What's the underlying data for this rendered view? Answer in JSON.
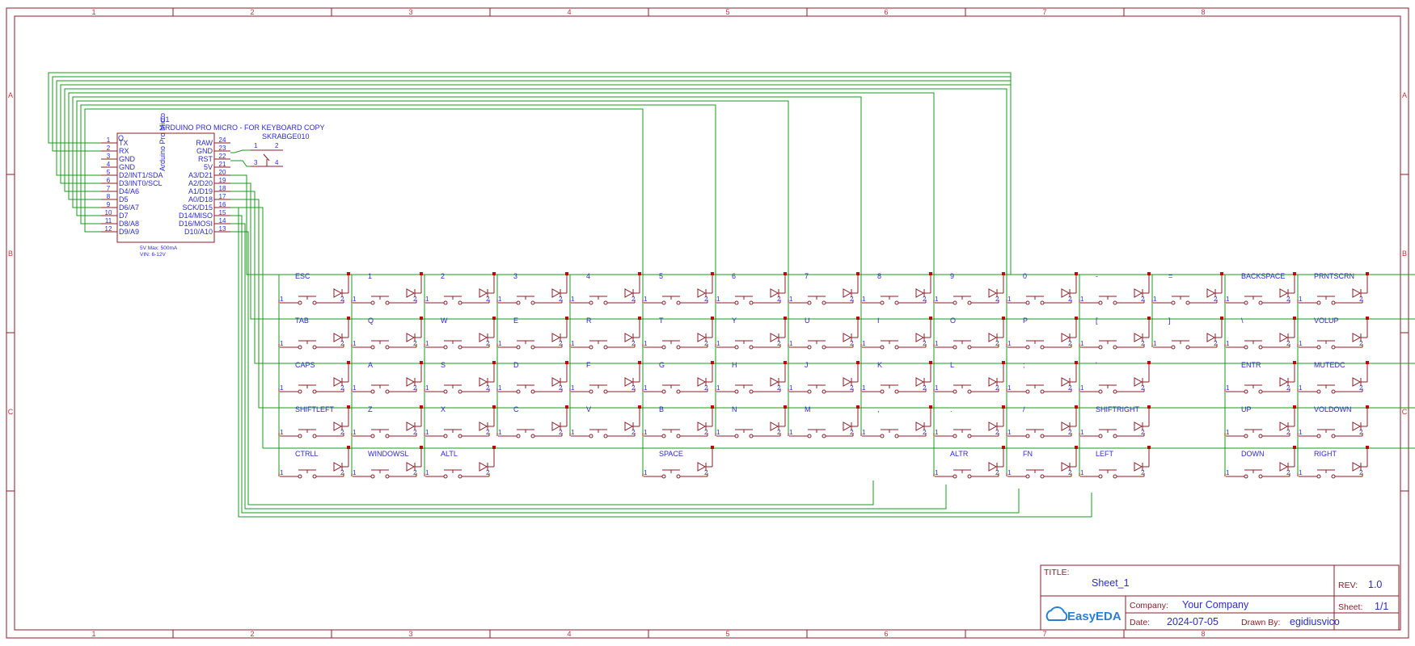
{
  "frame": {
    "columns": [
      "1",
      "2",
      "3",
      "4",
      "5",
      "6",
      "7",
      "8"
    ],
    "rows": [
      "A",
      "B",
      "C"
    ]
  },
  "mcu": {
    "designator": "U1",
    "part_name": "ARDUINO PRO MICRO - FOR KEYBOARD COPY",
    "body_text": "Arduino Pro Micro",
    "corner_mark": "O",
    "note_power": "5V Max: 500mA",
    "note_vin": "VIN: 6-12V",
    "left_pins": [
      {
        "num": "1",
        "name": "TX"
      },
      {
        "num": "2",
        "name": "RX"
      },
      {
        "num": "3",
        "name": "GND"
      },
      {
        "num": "4",
        "name": "GND"
      },
      {
        "num": "5",
        "name": "D2/INT1/SDA"
      },
      {
        "num": "6",
        "name": "D3/INT0/SCL"
      },
      {
        "num": "7",
        "name": "D4/A6"
      },
      {
        "num": "8",
        "name": "D5"
      },
      {
        "num": "9",
        "name": "D6/A7"
      },
      {
        "num": "10",
        "name": "D7"
      },
      {
        "num": "11",
        "name": "D8/A8"
      },
      {
        "num": "12",
        "name": "D9/A9"
      }
    ],
    "right_pins": [
      {
        "num": "24",
        "name": "RAW"
      },
      {
        "num": "23",
        "name": "GND"
      },
      {
        "num": "22",
        "name": "RST"
      },
      {
        "num": "21",
        "name": "5V"
      },
      {
        "num": "20",
        "name": "A3/D21"
      },
      {
        "num": "19",
        "name": "A2/D20"
      },
      {
        "num": "18",
        "name": "A1/D19"
      },
      {
        "num": "17",
        "name": "A0/D18"
      },
      {
        "num": "16",
        "name": "SCK/D15"
      },
      {
        "num": "15",
        "name": "D14/MISO"
      },
      {
        "num": "14",
        "name": "D16/MOSI"
      },
      {
        "num": "13",
        "name": "D10/A10"
      }
    ]
  },
  "reset_switch": {
    "designator": "U2",
    "part_name": "SKRABGE010",
    "pins": [
      "1",
      "2",
      "3",
      "4"
    ]
  },
  "keys": [
    [
      "ESC",
      "1",
      "2",
      "3",
      "4",
      "5",
      "6",
      "7",
      "8",
      "9",
      "0",
      "-",
      "=",
      "BACKSPACE",
      "PRNTSCRN"
    ],
    [
      "TAB",
      "Q",
      "W",
      "E",
      "R",
      "T",
      "Y",
      "U",
      "I",
      "O",
      "P",
      "[",
      "]",
      "\\",
      "VOLUP"
    ],
    [
      "CAPS",
      "A",
      "S",
      "D",
      "F",
      "G",
      "H",
      "J",
      "K",
      "L",
      ";",
      "'",
      "",
      "ENTR",
      "MUTEDC"
    ],
    [
      "SHIFTLEFT",
      "Z",
      "X",
      "C",
      "V",
      "B",
      "N",
      "M",
      ",",
      ".",
      "/",
      "SHIFTRIGHT",
      "",
      "UP",
      "VOLDOWN"
    ],
    [
      "CTRLL",
      "WINDOWSL",
      "ALTL",
      "",
      "",
      "SPACE",
      "",
      "",
      "",
      "ALTR",
      "FN",
      "LEFT",
      "",
      "DOWN",
      "RIGHT"
    ]
  ],
  "title_block": {
    "title_label": "TITLE:",
    "title_value": "Sheet_1",
    "rev_label": "REV:",
    "rev_value": "1.0",
    "company_label": "Company:",
    "company_value": "Your Company",
    "sheet_label": "Sheet:",
    "sheet_value": "1/1",
    "date_label": "Date:",
    "date_value": "2024-07-05",
    "drawn_label": "Drawn By:",
    "drawn_value": "egidiusvico",
    "logo_text": "EasyEDA"
  },
  "colors": {
    "frame": "#8b1c26",
    "wire": "#1a9a1a",
    "symbol": "#8b1c26",
    "text": "#2b2bd0",
    "junction": "#cc0000"
  }
}
